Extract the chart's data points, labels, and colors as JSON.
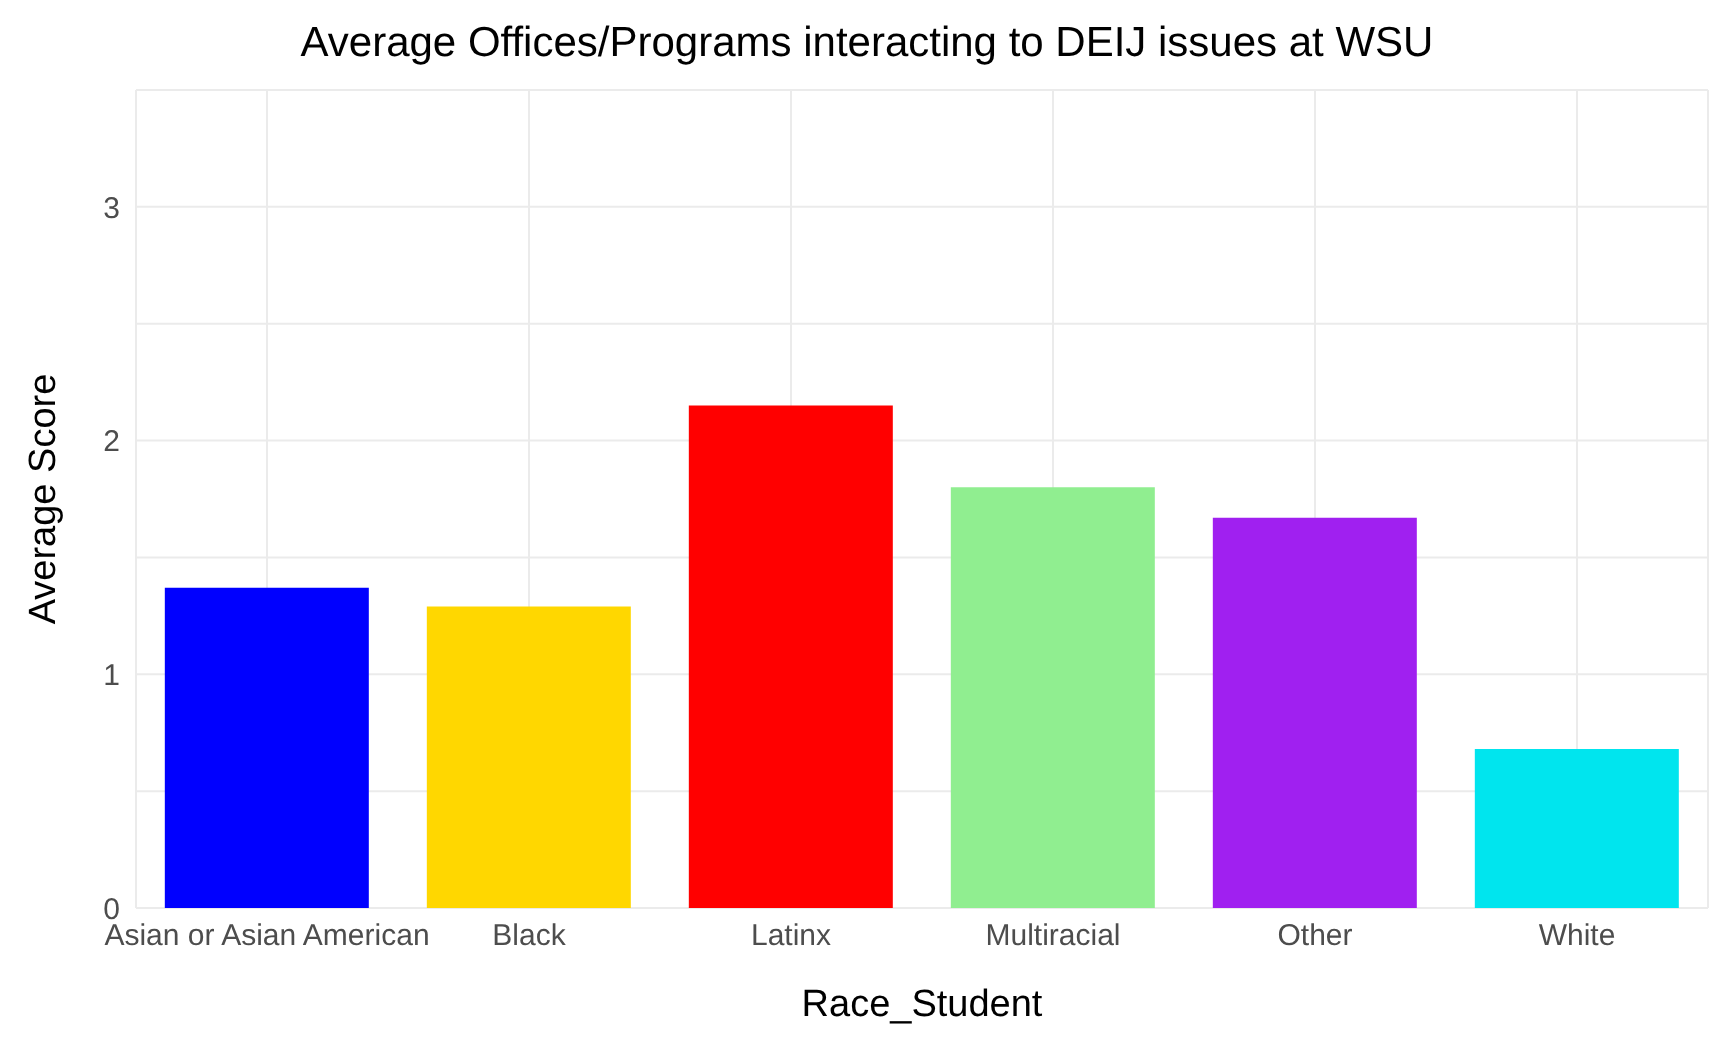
{
  "chart_data": {
    "type": "bar",
    "title": "Average Offices/Programs interacting to DEIJ issues at WSU",
    "xlabel": "Race_Student",
    "ylabel": "Average Score",
    "categories": [
      "Asian or Asian American",
      "Black",
      "Latinx",
      "Multiracial",
      "Other",
      "White"
    ],
    "values": [
      1.37,
      1.29,
      2.15,
      1.8,
      1.67,
      0.68
    ],
    "colors": [
      "#0000ff",
      "#ffd700",
      "#ff0000",
      "#90ee90",
      "#a020f0",
      "#00e5ee"
    ],
    "ylim": [
      0,
      3.5
    ],
    "yticks": [
      0,
      {
        "value": 0.5,
        "label": null
      },
      1,
      {
        "value": 1.5,
        "label": null
      },
      2,
      {
        "value": 2.5,
        "label": null
      },
      3,
      {
        "value": 3.5,
        "label": null
      }
    ],
    "grid": true,
    "legend": false
  }
}
